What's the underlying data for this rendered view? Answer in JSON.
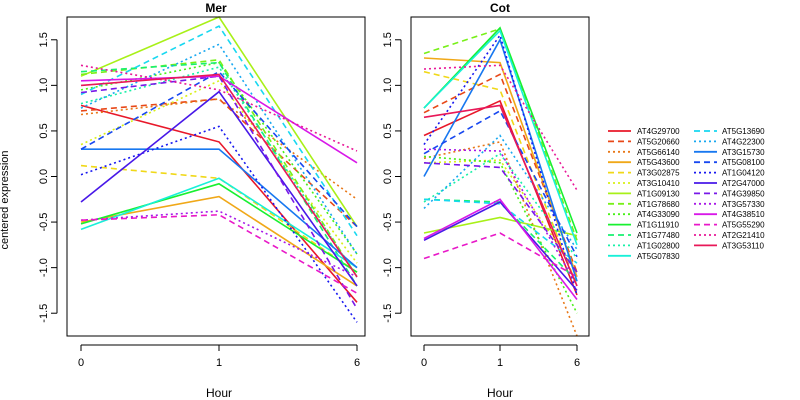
{
  "chart_data": [
    {
      "type": "line",
      "title": "Mer",
      "xlabel": "Hour",
      "ylabel": "centered expression",
      "categories": [
        "0",
        "1",
        "6"
      ],
      "ylim": [
        -1.75,
        1.75
      ],
      "yticks": [
        "-1.5",
        "-1.0",
        "-0.5",
        "0.0",
        "0.5",
        "1.0",
        "1.5"
      ],
      "series": [
        {
          "name": "AT4G29700",
          "values": [
            0.78,
            0.38,
            -1.38
          ]
        },
        {
          "name": "AT5G20660",
          "values": [
            0.72,
            0.85,
            -0.55
          ]
        },
        {
          "name": "AT5G66140",
          "values": [
            0.68,
            0.85,
            -0.25
          ]
        },
        {
          "name": "AT5G43600",
          "values": [
            -0.5,
            -0.22,
            -1.2
          ]
        },
        {
          "name": "AT3G02875",
          "values": [
            0.12,
            -0.02,
            -1.05
          ]
        },
        {
          "name": "AT3G10410",
          "values": [
            0.35,
            1.05,
            -0.95
          ]
        },
        {
          "name": "AT1G09130",
          "values": [
            1.1,
            1.75,
            -0.55
          ]
        },
        {
          "name": "AT1G78680",
          "values": [
            1.12,
            1.28,
            -1.1
          ]
        },
        {
          "name": "AT4G33090",
          "values": [
            0.95,
            1.25,
            -0.85
          ]
        },
        {
          "name": "AT1G11910",
          "values": [
            -0.52,
            -0.08,
            -1.05
          ]
        },
        {
          "name": "AT1G77480",
          "values": [
            1.15,
            1.25,
            -1.2
          ]
        },
        {
          "name": "AT1G02800",
          "values": [
            0.8,
            1.2,
            -1.1
          ]
        },
        {
          "name": "AT5G07830",
          "values": [
            -0.58,
            -0.02,
            -1.0
          ]
        },
        {
          "name": "AT5G13690",
          "values": [
            0.9,
            1.65,
            -0.65
          ]
        },
        {
          "name": "AT4G22300",
          "values": [
            0.75,
            1.45,
            -0.85
          ]
        },
        {
          "name": "AT3G15730",
          "values": [
            0.3,
            0.3,
            -1.0
          ]
        },
        {
          "name": "AT5G08100",
          "values": [
            0.3,
            1.15,
            -0.55
          ]
        },
        {
          "name": "AT1G04120",
          "values": [
            0.02,
            0.55,
            -1.6
          ]
        },
        {
          "name": "AT2G47000",
          "values": [
            -0.28,
            0.93,
            -1.2
          ]
        },
        {
          "name": "AT4G39850",
          "values": [
            0.92,
            1.1,
            -1.45
          ]
        },
        {
          "name": "AT3G57330",
          "values": [
            -0.48,
            -0.38,
            -1.1
          ]
        },
        {
          "name": "AT4G38510",
          "values": [
            1.05,
            1.1,
            0.15
          ]
        },
        {
          "name": "AT5G55290",
          "values": [
            -0.48,
            -0.42,
            -1.28
          ]
        },
        {
          "name": "AT2G21410",
          "values": [
            1.22,
            0.95,
            0.28
          ]
        },
        {
          "name": "AT3G53110",
          "values": [
            1.0,
            1.12,
            -1.1
          ]
        }
      ]
    },
    {
      "type": "line",
      "title": "Cot",
      "xlabel": "Hour",
      "ylabel": "",
      "categories": [
        "0",
        "1",
        "6"
      ],
      "ylim": [
        -1.75,
        1.75
      ],
      "yticks": [
        "-1.5",
        "-1.0",
        "-0.5",
        "0.0",
        "0.5",
        "1.0",
        "1.5"
      ],
      "series": [
        {
          "name": "AT4G29700",
          "values": [
            0.45,
            0.83,
            -1.3
          ]
        },
        {
          "name": "AT5G20660",
          "values": [
            0.7,
            1.12,
            -1.05
          ]
        },
        {
          "name": "AT5G66140",
          "values": [
            0.2,
            0.38,
            -1.75
          ]
        },
        {
          "name": "AT5G43600",
          "values": [
            1.3,
            1.25,
            -1.1
          ]
        },
        {
          "name": "AT3G02875",
          "values": [
            1.15,
            0.95,
            -1.2
          ]
        },
        {
          "name": "AT3G10410",
          "values": [
            0.15,
            0.18,
            -1.05
          ]
        },
        {
          "name": "AT1G09130",
          "values": [
            -0.62,
            -0.45,
            -0.65
          ]
        },
        {
          "name": "AT1G78680",
          "values": [
            1.35,
            1.62,
            -0.7
          ]
        },
        {
          "name": "AT4G33090",
          "values": [
            0.22,
            0.15,
            -1.5
          ]
        },
        {
          "name": "AT1G11910",
          "values": [
            0.75,
            1.63,
            -0.62
          ]
        },
        {
          "name": "AT1G77480",
          "values": [
            -0.25,
            -0.28,
            -1.15
          ]
        },
        {
          "name": "AT1G02800",
          "values": [
            -0.28,
            0.25,
            -0.9
          ]
        },
        {
          "name": "AT5G07830",
          "values": [
            0.75,
            1.6,
            -0.75
          ]
        },
        {
          "name": "AT5G13690",
          "values": [
            -0.25,
            -0.3,
            -0.95
          ]
        },
        {
          "name": "AT4G22300",
          "values": [
            -0.35,
            0.45,
            -0.8
          ]
        },
        {
          "name": "AT3G15730",
          "values": [
            0.0,
            1.5,
            -1.15
          ]
        },
        {
          "name": "AT5G08100",
          "values": [
            0.25,
            0.72,
            -0.88
          ]
        },
        {
          "name": "AT1G04120",
          "values": [
            0.35,
            1.55,
            -1.3
          ]
        },
        {
          "name": "AT2G47000",
          "values": [
            -0.7,
            -0.28,
            -1.25
          ]
        },
        {
          "name": "AT4G39850",
          "values": [
            0.15,
            0.1,
            -1.05
          ]
        },
        {
          "name": "AT3G57330",
          "values": [
            0.3,
            0.28,
            -1.2
          ]
        },
        {
          "name": "AT4G38510",
          "values": [
            -0.68,
            -0.25,
            -1.35
          ]
        },
        {
          "name": "AT5G55290",
          "values": [
            -0.9,
            -0.62,
            -1.1
          ]
        },
        {
          "name": "AT2G21410",
          "values": [
            1.18,
            1.22,
            -0.15
          ]
        },
        {
          "name": "AT3G53110",
          "values": [
            0.65,
            0.78,
            -1.2
          ]
        }
      ]
    }
  ],
  "legend": {
    "placement": "right",
    "entries": [
      {
        "name": "AT4G29700",
        "color": "#e8182a",
        "dash": "solid"
      },
      {
        "name": "AT5G20660",
        "color": "#e84818",
        "dash": "dashed"
      },
      {
        "name": "AT5G66140",
        "color": "#e87818",
        "dash": "dotted"
      },
      {
        "name": "AT5G43600",
        "color": "#f0a818",
        "dash": "solid"
      },
      {
        "name": "AT3G02875",
        "color": "#f0d818",
        "dash": "dashed"
      },
      {
        "name": "AT3G10410",
        "color": "#d8f018",
        "dash": "dotted"
      },
      {
        "name": "AT1G09130",
        "color": "#a8f018",
        "dash": "solid"
      },
      {
        "name": "AT1G78680",
        "color": "#78f018",
        "dash": "dashed"
      },
      {
        "name": "AT4G33090",
        "color": "#48f018",
        "dash": "dotted"
      },
      {
        "name": "AT1G11910",
        "color": "#18f030",
        "dash": "solid"
      },
      {
        "name": "AT1G77480",
        "color": "#18f070",
        "dash": "dashed"
      },
      {
        "name": "AT1G02800",
        "color": "#18f0a8",
        "dash": "dotted"
      },
      {
        "name": "AT5G07830",
        "color": "#18f0d8",
        "dash": "solid"
      },
      {
        "name": "AT5G13690",
        "color": "#18d8f0",
        "dash": "dashed"
      },
      {
        "name": "AT4G22300",
        "color": "#18a8f0",
        "dash": "dotted"
      },
      {
        "name": "AT3G15730",
        "color": "#1878f0",
        "dash": "solid"
      },
      {
        "name": "AT5G08100",
        "color": "#1848f0",
        "dash": "dashed"
      },
      {
        "name": "AT1G04120",
        "color": "#1818f0",
        "dash": "dotted"
      },
      {
        "name": "AT2G47000",
        "color": "#4818e8",
        "dash": "solid"
      },
      {
        "name": "AT4G39850",
        "color": "#7818e8",
        "dash": "dashed"
      },
      {
        "name": "AT3G57330",
        "color": "#a818e8",
        "dash": "dotted"
      },
      {
        "name": "AT4G38510",
        "color": "#d818e8",
        "dash": "solid"
      },
      {
        "name": "AT5G55290",
        "color": "#e818c8",
        "dash": "dashed"
      },
      {
        "name": "AT2G21410",
        "color": "#e81898",
        "dash": "dotted"
      },
      {
        "name": "AT3G53110",
        "color": "#e81858",
        "dash": "solid"
      }
    ]
  }
}
